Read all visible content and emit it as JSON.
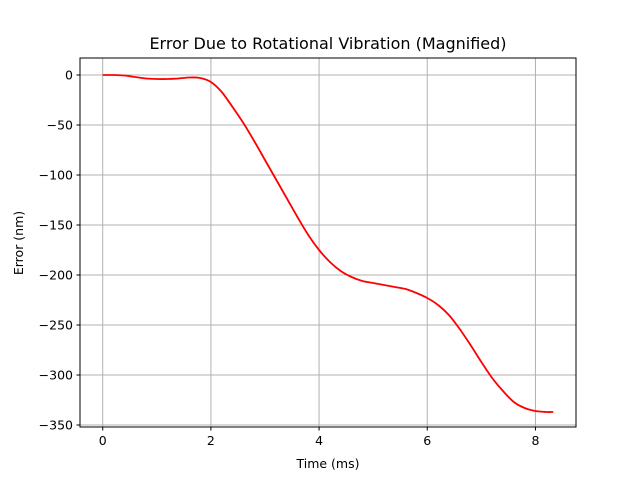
{
  "chart_data": {
    "type": "line",
    "title": "Error Due to Rotational Vibration (Magnified)",
    "xlabel": "Time (ms)",
    "ylabel": "Error (nm)",
    "xlim": [
      -0.42,
      8.75
    ],
    "ylim": [
      -352,
      17
    ],
    "xticks": [
      0,
      2,
      4,
      6,
      8
    ],
    "yticks": [
      0,
      -50,
      -100,
      -150,
      -200,
      -250,
      -300,
      -350
    ],
    "xtick_labels": [
      "0",
      "2",
      "4",
      "6",
      "8"
    ],
    "ytick_labels": [
      "0",
      "−50",
      "−100",
      "−150",
      "−200",
      "−250",
      "−300",
      "−350"
    ],
    "grid": true,
    "legend": "none",
    "series": [
      {
        "color": "#ff0000",
        "x": [
          0,
          0.2,
          0.4,
          0.6,
          0.8,
          1.0,
          1.2,
          1.4,
          1.6,
          1.8,
          2.0,
          2.2,
          2.4,
          2.6,
          2.8,
          3.0,
          3.2,
          3.4,
          3.6,
          3.8,
          4.0,
          4.2,
          4.4,
          4.6,
          4.8,
          5.0,
          5.2,
          5.4,
          5.6,
          5.8,
          6.0,
          6.2,
          6.4,
          6.6,
          6.8,
          7.0,
          7.2,
          7.4,
          7.6,
          7.8,
          8.0,
          8.2,
          8.33
        ],
        "y": [
          0,
          0,
          -0.5,
          -2,
          -3.5,
          -4,
          -4,
          -3.5,
          -2.5,
          -3,
          -7,
          -17,
          -32,
          -48,
          -66,
          -85,
          -104,
          -123,
          -142,
          -160,
          -175,
          -187,
          -196,
          -202,
          -206,
          -208,
          -210,
          -212,
          -214,
          -218,
          -223,
          -230,
          -240,
          -254,
          -270,
          -287,
          -303,
          -316,
          -327,
          -333,
          -336,
          -337,
          -337
        ]
      }
    ]
  }
}
